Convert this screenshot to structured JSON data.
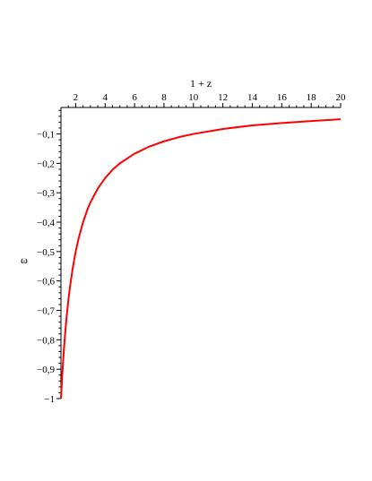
{
  "chart_data": {
    "type": "line",
    "title": "",
    "xlabel": "1 + z",
    "ylabel": "ω",
    "xlim": [
      1,
      20
    ],
    "ylim": [
      -1,
      -0.01
    ],
    "x_ticks": [
      2,
      4,
      6,
      8,
      10,
      12,
      14,
      16,
      18,
      20
    ],
    "y_ticks": [
      -0.1,
      -0.2,
      -0.3,
      -0.4,
      -0.5,
      -0.6,
      -0.7,
      -0.8,
      -0.9,
      -1
    ],
    "y_tick_labels": [
      "−0,1",
      "−0,2",
      "−0,3",
      "−0,4",
      "−0,5",
      "−0,6",
      "−0,7",
      "−0,8",
      "−0,9",
      "−1"
    ],
    "x_axis_position": "top",
    "grid": false,
    "series": [
      {
        "color": "#ff0000",
        "x": [
          1.0,
          1.1,
          1.2,
          1.3,
          1.4,
          1.5,
          1.6,
          1.8,
          2.0,
          2.2,
          2.5,
          2.8,
          3.0,
          3.5,
          4.0,
          4.5,
          5.0,
          6.0,
          7.0,
          8.0,
          9.0,
          10.0,
          12.0,
          14.0,
          16.0,
          18.0,
          20.0
        ],
        "y": [
          -1.0,
          -0.909,
          -0.833,
          -0.769,
          -0.714,
          -0.667,
          -0.625,
          -0.556,
          -0.5,
          -0.455,
          -0.4,
          -0.357,
          -0.333,
          -0.286,
          -0.25,
          -0.222,
          -0.2,
          -0.167,
          -0.143,
          -0.125,
          -0.111,
          -0.1,
          -0.083,
          -0.071,
          -0.063,
          -0.056,
          -0.05
        ]
      }
    ]
  }
}
